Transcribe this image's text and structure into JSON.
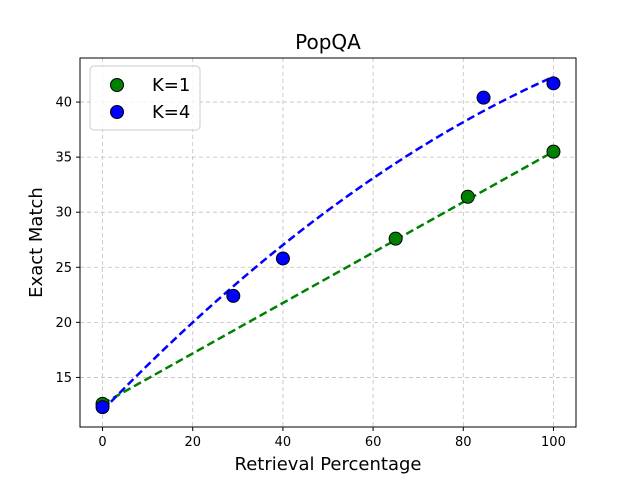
{
  "chart_data": {
    "type": "scatter",
    "title": "PopQA",
    "xlabel": "Retrieval Percentage",
    "ylabel": "Exact Match",
    "xlim": [
      -5,
      105
    ],
    "ylim": [
      10.5,
      44
    ],
    "xticks": [
      0,
      20,
      40,
      60,
      80,
      100
    ],
    "yticks": [
      15,
      20,
      25,
      30,
      35,
      40
    ],
    "grid": true,
    "legend": "top-left",
    "series": [
      {
        "name": "K=1",
        "color": "#008000",
        "points": [
          {
            "x": 0,
            "y": 12.6
          },
          {
            "x": 65,
            "y": 27.6
          },
          {
            "x": 81,
            "y": 31.4
          },
          {
            "x": 100,
            "y": 35.5
          }
        ],
        "fit": {
          "kind": "linear",
          "x": [
            0,
            100
          ],
          "y": [
            12.6,
            35.5
          ]
        }
      },
      {
        "name": "K=4",
        "color": "#0000ff",
        "points": [
          {
            "x": 0,
            "y": 12.3
          },
          {
            "x": 29,
            "y": 22.4
          },
          {
            "x": 40,
            "y": 25.8
          },
          {
            "x": 84.5,
            "y": 40.4
          },
          {
            "x": 100,
            "y": 41.7
          }
        ],
        "fit": {
          "kind": "quadratic",
          "coeffs": [
            12.0,
            0.424,
            -0.00121
          ],
          "x": [
            0,
            100
          ]
        }
      }
    ]
  }
}
